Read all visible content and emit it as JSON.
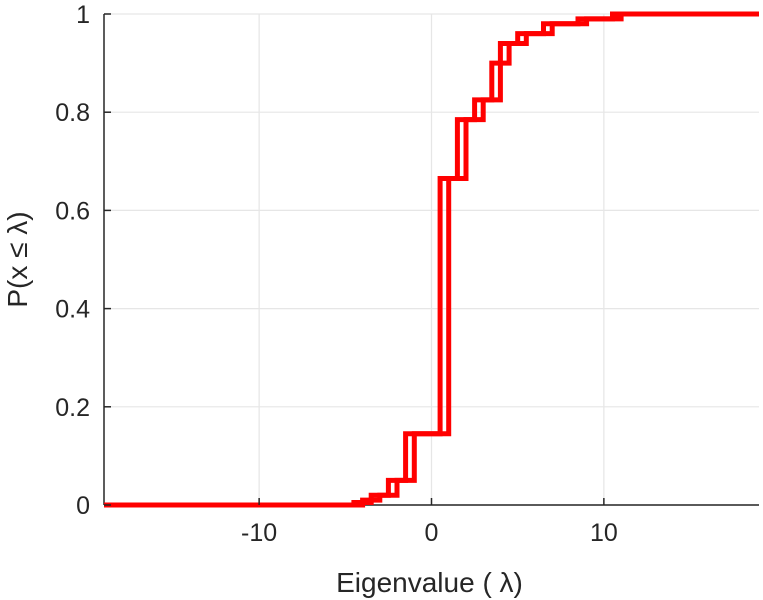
{
  "chart_data": {
    "type": "line",
    "step": true,
    "xlabel": "Eigenvalue (   λ)",
    "ylabel": "P(x ≤ λ)",
    "xlim": [
      -19,
      19
    ],
    "ylim": [
      0,
      1
    ],
    "xticks": [
      -10,
      0,
      10
    ],
    "xtick_labels": [
      "-10",
      "0",
      "10"
    ],
    "yticks": [
      0,
      0.2,
      0.4,
      0.6,
      0.8,
      1
    ],
    "ytick_labels": [
      "0",
      "0.2",
      "0.4",
      "0.6",
      "0.8",
      "1"
    ],
    "grid": true,
    "legend": "none",
    "color": "#ff0000",
    "series": [
      {
        "x": [
          -19,
          -5,
          -4,
          -3.5,
          -3,
          -2,
          -1,
          1,
          2,
          3,
          4,
          4.5,
          5.5,
          7,
          9,
          11,
          19
        ],
        "y": [
          0,
          0,
          0.005,
          0.01,
          0.02,
          0.05,
          0.145,
          0.665,
          0.785,
          0.825,
          0.9,
          0.94,
          0.96,
          0.98,
          0.99,
          1,
          1
        ]
      },
      {
        "x": [
          -19,
          -5.5,
          -4.5,
          -4,
          -3.5,
          -2.5,
          -1.5,
          0.5,
          1.5,
          2.5,
          3.5,
          4,
          5,
          6.5,
          8.5,
          10.5,
          19
        ],
        "y": [
          0,
          0,
          0.005,
          0.01,
          0.02,
          0.05,
          0.145,
          0.665,
          0.785,
          0.825,
          0.9,
          0.94,
          0.96,
          0.98,
          0.99,
          1,
          1
        ]
      }
    ]
  }
}
